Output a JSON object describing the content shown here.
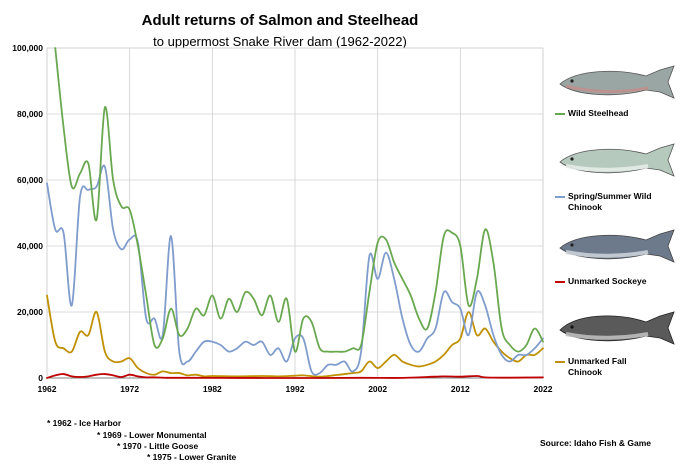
{
  "title": "Adult returns of Salmon and Steelhead",
  "subtitle": "to uppermost Snake River dam (1962-2022)",
  "source": "Source: Idaho Fish & Game",
  "notes": [
    "* 1962 - Ice Harbor",
    "* 1969 - Lower Monumental",
    "* 1970 - Little Goose",
    "* 1975 - Lower Granite"
  ],
  "colors": {
    "steelhead": "#6aa84f",
    "chinook": "#7f9ccc",
    "sockeye": "#c00000",
    "fall_chinook": "#bf9000",
    "grid": "#d0d0d0",
    "axis": "#808080"
  },
  "legend": [
    {
      "name": "Wild Steelhead",
      "icon": "steelhead-fish-icon"
    },
    {
      "name": "Spring/Summer Wild Chinook",
      "icon": "chinook-fish-icon"
    },
    {
      "name": "Unmarked Sockeye",
      "icon": "sockeye-fish-icon"
    },
    {
      "name": "Unmarked Fall Chinook",
      "icon": "fall-chinook-fish-icon"
    }
  ],
  "chart_data": {
    "type": "line",
    "xlim": [
      1962,
      2022
    ],
    "ylim": [
      0,
      100000
    ],
    "xticks": [
      "1962",
      "1972",
      "1982",
      "1992",
      "2002",
      "2012",
      "2022"
    ],
    "yticks": [
      "0",
      "20,000",
      "40,000",
      "60,000",
      "80,000",
      "100,000"
    ],
    "grid": true,
    "legend_position": "right",
    "series": [
      {
        "name": "Wild Steelhead",
        "color_key": "steelhead",
        "points": [
          [
            1963,
            100000
          ],
          [
            1964,
            76000
          ],
          [
            1965,
            58000
          ],
          [
            1966,
            62000
          ],
          [
            1967,
            65000
          ],
          [
            1968,
            48000
          ],
          [
            1969,
            82000
          ],
          [
            1970,
            60000
          ],
          [
            1971,
            52000
          ],
          [
            1972,
            51000
          ],
          [
            1973,
            40000
          ],
          [
            1974,
            25000
          ],
          [
            1975,
            10000
          ],
          [
            1976,
            12000
          ],
          [
            1977,
            21000
          ],
          [
            1978,
            13000
          ],
          [
            1979,
            15000
          ],
          [
            1980,
            21000
          ],
          [
            1981,
            19000
          ],
          [
            1982,
            25000
          ],
          [
            1983,
            18000
          ],
          [
            1984,
            24000
          ],
          [
            1985,
            20000
          ],
          [
            1986,
            26000
          ],
          [
            1987,
            24000
          ],
          [
            1988,
            19000
          ],
          [
            1989,
            25000
          ],
          [
            1990,
            17000
          ],
          [
            1991,
            24000
          ],
          [
            1992,
            8000
          ],
          [
            1993,
            18000
          ],
          [
            1994,
            17000
          ],
          [
            1995,
            9000
          ],
          [
            1996,
            8000
          ],
          [
            1997,
            8000
          ],
          [
            1998,
            8000
          ],
          [
            1999,
            9000
          ],
          [
            2000,
            10000
          ],
          [
            2001,
            26000
          ],
          [
            2002,
            41000
          ],
          [
            2003,
            42000
          ],
          [
            2004,
            35000
          ],
          [
            2005,
            30000
          ],
          [
            2006,
            25000
          ],
          [
            2007,
            18000
          ],
          [
            2008,
            15000
          ],
          [
            2009,
            26000
          ],
          [
            2010,
            43000
          ],
          [
            2011,
            44000
          ],
          [
            2012,
            40000
          ],
          [
            2013,
            22000
          ],
          [
            2014,
            30000
          ],
          [
            2015,
            45000
          ],
          [
            2016,
            35000
          ],
          [
            2017,
            15000
          ],
          [
            2018,
            10000
          ],
          [
            2019,
            8000
          ],
          [
            2020,
            10000
          ],
          [
            2021,
            15000
          ],
          [
            2022,
            11000
          ]
        ]
      },
      {
        "name": "Spring/Summer Wild Chinook",
        "color_key": "chinook",
        "points": [
          [
            1962,
            59000
          ],
          [
            1963,
            45000
          ],
          [
            1964,
            44000
          ],
          [
            1965,
            22000
          ],
          [
            1966,
            55000
          ],
          [
            1967,
            57000
          ],
          [
            1968,
            58000
          ],
          [
            1969,
            64000
          ],
          [
            1970,
            45000
          ],
          [
            1971,
            39000
          ],
          [
            1972,
            42000
          ],
          [
            1973,
            41000
          ],
          [
            1974,
            18000
          ],
          [
            1975,
            18000
          ],
          [
            1976,
            13000
          ],
          [
            1977,
            43000
          ],
          [
            1978,
            8000
          ],
          [
            1979,
            5000
          ],
          [
            1980,
            8000
          ],
          [
            1981,
            11000
          ],
          [
            1982,
            11000
          ],
          [
            1983,
            10000
          ],
          [
            1984,
            8000
          ],
          [
            1985,
            9000
          ],
          [
            1986,
            11000
          ],
          [
            1987,
            10000
          ],
          [
            1988,
            11000
          ],
          [
            1989,
            7000
          ],
          [
            1990,
            9000
          ],
          [
            1991,
            5000
          ],
          [
            1992,
            12000
          ],
          [
            1993,
            12000
          ],
          [
            1994,
            2000
          ],
          [
            1995,
            1500
          ],
          [
            1996,
            4000
          ],
          [
            1997,
            4000
          ],
          [
            1998,
            5000
          ],
          [
            1999,
            2000
          ],
          [
            2000,
            8000
          ],
          [
            2001,
            37000
          ],
          [
            2002,
            30000
          ],
          [
            2003,
            38000
          ],
          [
            2004,
            30000
          ],
          [
            2005,
            18000
          ],
          [
            2006,
            10000
          ],
          [
            2007,
            8000
          ],
          [
            2008,
            12000
          ],
          [
            2009,
            15000
          ],
          [
            2010,
            26000
          ],
          [
            2011,
            23000
          ],
          [
            2012,
            21000
          ],
          [
            2013,
            13000
          ],
          [
            2014,
            26000
          ],
          [
            2015,
            22000
          ],
          [
            2016,
            13000
          ],
          [
            2017,
            7000
          ],
          [
            2018,
            5000
          ],
          [
            2019,
            7000
          ],
          [
            2020,
            7000
          ],
          [
            2021,
            9000
          ],
          [
            2022,
            12000
          ]
        ]
      },
      {
        "name": "Unmarked Sockeye",
        "color_key": "sockeye",
        "points": [
          [
            1962,
            0
          ],
          [
            1963,
            800
          ],
          [
            1964,
            1200
          ],
          [
            1965,
            500
          ],
          [
            1966,
            300
          ],
          [
            1967,
            500
          ],
          [
            1968,
            1000
          ],
          [
            1969,
            1200
          ],
          [
            1970,
            800
          ],
          [
            1971,
            300
          ],
          [
            1972,
            1000
          ],
          [
            1973,
            500
          ],
          [
            1974,
            200
          ],
          [
            1975,
            200
          ],
          [
            1976,
            100
          ],
          [
            1977,
            50
          ],
          [
            1980,
            50
          ],
          [
            1985,
            20
          ],
          [
            1990,
            10
          ],
          [
            1995,
            10
          ],
          [
            2000,
            50
          ],
          [
            2005,
            30
          ],
          [
            2008,
            300
          ],
          [
            2010,
            500
          ],
          [
            2012,
            400
          ],
          [
            2014,
            600
          ],
          [
            2015,
            200
          ],
          [
            2018,
            100
          ],
          [
            2022,
            200
          ]
        ]
      },
      {
        "name": "Unmarked Fall Chinook",
        "color_key": "fall_chinook",
        "points": [
          [
            1962,
            25000
          ],
          [
            1963,
            11000
          ],
          [
            1964,
            9000
          ],
          [
            1965,
            8000
          ],
          [
            1966,
            14000
          ],
          [
            1967,
            13000
          ],
          [
            1968,
            20000
          ],
          [
            1969,
            8000
          ],
          [
            1970,
            5000
          ],
          [
            1971,
            5000
          ],
          [
            1972,
            6000
          ],
          [
            1973,
            3000
          ],
          [
            1974,
            1500
          ],
          [
            1975,
            1000
          ],
          [
            1976,
            2000
          ],
          [
            1977,
            1500
          ],
          [
            1978,
            1500
          ],
          [
            1979,
            800
          ],
          [
            1980,
            1000
          ],
          [
            1981,
            500
          ],
          [
            1982,
            600
          ],
          [
            1985,
            500
          ],
          [
            1988,
            600
          ],
          [
            1990,
            500
          ],
          [
            1992,
            700
          ],
          [
            1993,
            800
          ],
          [
            1995,
            400
          ],
          [
            1997,
            900
          ],
          [
            1999,
            1500
          ],
          [
            2000,
            2000
          ],
          [
            2001,
            5000
          ],
          [
            2002,
            3000
          ],
          [
            2003,
            5000
          ],
          [
            2004,
            7000
          ],
          [
            2005,
            5000
          ],
          [
            2006,
            4000
          ],
          [
            2007,
            3500
          ],
          [
            2008,
            4000
          ],
          [
            2009,
            5000
          ],
          [
            2010,
            7000
          ],
          [
            2011,
            10000
          ],
          [
            2012,
            12000
          ],
          [
            2013,
            20000
          ],
          [
            2014,
            13000
          ],
          [
            2015,
            15000
          ],
          [
            2016,
            11000
          ],
          [
            2017,
            8000
          ],
          [
            2018,
            6000
          ],
          [
            2019,
            5000
          ],
          [
            2020,
            7000
          ],
          [
            2021,
            7000
          ],
          [
            2022,
            9000
          ]
        ]
      }
    ]
  }
}
